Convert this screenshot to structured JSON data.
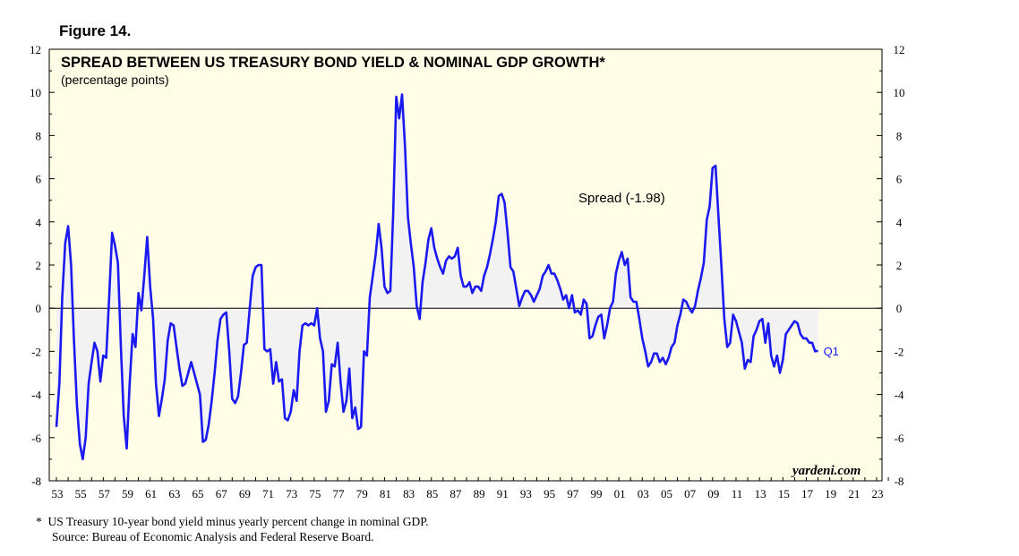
{
  "figure_label": "Figure 14.",
  "footnotes": {
    "line1": "*  US Treasury 10-year bond yield minus yearly percent change in nominal GDP.",
    "line2": "Source: Bureau of Economic Analysis and Federal Reserve Board."
  },
  "colors": {
    "background": "#fffde6",
    "line": "#1a1af0",
    "shade": "#f2f2f2"
  },
  "chart_data": {
    "type": "line",
    "title": "SPREAD BETWEEN US TREASURY BOND YIELD & NOMINAL GDP GROWTH*",
    "subtitle": "(percentage points)",
    "ylim": [
      -8,
      12
    ],
    "xlim": [
      1953,
      2024
    ],
    "y_ticks": [
      -8,
      -6,
      -4,
      -2,
      0,
      2,
      4,
      6,
      8,
      10,
      12
    ],
    "x_tick_labels": [
      "53",
      "55",
      "57",
      "59",
      "61",
      "63",
      "65",
      "67",
      "69",
      "71",
      "73",
      "75",
      "77",
      "79",
      "81",
      "83",
      "85",
      "87",
      "89",
      "91",
      "93",
      "95",
      "97",
      "99",
      "01",
      "03",
      "05",
      "07",
      "09",
      "11",
      "13",
      "15",
      "17",
      "19",
      "21",
      "23"
    ],
    "x_tick_years": [
      1953,
      1955,
      1957,
      1959,
      1961,
      1963,
      1965,
      1967,
      1969,
      1971,
      1973,
      1975,
      1977,
      1979,
      1981,
      1983,
      1985,
      1987,
      1989,
      1991,
      1993,
      1995,
      1997,
      1999,
      2001,
      2003,
      2005,
      2007,
      2009,
      2011,
      2013,
      2015,
      2017,
      2019,
      2021,
      2023
    ],
    "annotation": "Spread (-1.98)",
    "end_label": "Q1",
    "watermark": "yardeni.com",
    "zero_line": true,
    "shaded_to_zero": true,
    "series": [
      {
        "x": [
          1953.0,
          1953.25,
          1953.5,
          1953.75,
          1954.0,
          1954.25,
          1954.5,
          1954.75,
          1955.0,
          1955.25,
          1955.5,
          1955.75,
          1956.0,
          1956.25,
          1956.5,
          1956.75,
          1957.0,
          1957.25,
          1957.5,
          1957.75,
          1958.0,
          1958.25,
          1958.5,
          1958.75,
          1959.0,
          1959.25,
          1959.5,
          1959.75,
          1960.0,
          1960.25,
          1960.5,
          1960.75,
          1961.0,
          1961.25,
          1961.5,
          1961.75,
          1962.0,
          1962.25,
          1962.5,
          1962.75,
          1963.0,
          1963.25,
          1963.5,
          1963.75,
          1964.0,
          1964.25,
          1964.5,
          1964.75,
          1965.0,
          1965.25,
          1965.5,
          1965.75,
          1966.0,
          1966.25,
          1966.5,
          1966.75,
          1967.0,
          1967.25,
          1967.5,
          1967.75,
          1968.0,
          1968.25,
          1968.5,
          1968.75,
          1969.0,
          1969.25,
          1969.5,
          1969.75,
          1970.0,
          1970.25,
          1970.5,
          1970.75,
          1971.0,
          1971.25,
          1971.5,
          1971.75,
          1972.0,
          1972.25,
          1972.5,
          1972.75,
          1973.0,
          1973.25,
          1973.5,
          1973.75,
          1974.0,
          1974.25,
          1974.5,
          1974.75,
          1975.0,
          1975.25,
          1975.5,
          1975.75,
          1976.0,
          1976.25,
          1976.5,
          1976.75,
          1977.0,
          1977.25,
          1977.5,
          1977.75,
          1978.0,
          1978.25,
          1978.5,
          1978.75,
          1979.0,
          1979.25,
          1979.5,
          1979.75,
          1980.0,
          1980.25,
          1980.5,
          1980.75,
          1981.0,
          1981.25,
          1981.5,
          1981.75,
          1982.0,
          1982.25,
          1982.5,
          1982.75,
          1983.0,
          1983.25,
          1983.5,
          1983.75,
          1984.0,
          1984.25,
          1984.5,
          1984.75,
          1985.0,
          1985.25,
          1985.5,
          1985.75,
          1986.0,
          1986.25,
          1986.5,
          1986.75,
          1987.0,
          1987.25,
          1987.5,
          1987.75,
          1988.0,
          1988.25,
          1988.5,
          1988.75,
          1989.0,
          1989.25,
          1989.5,
          1989.75,
          1990.0,
          1990.25,
          1990.5,
          1990.75,
          1991.0,
          1991.25,
          1991.5,
          1991.75,
          1992.0,
          1992.25,
          1992.5,
          1992.75,
          1993.0,
          1993.25,
          1993.5,
          1993.75,
          1994.0,
          1994.25,
          1994.5,
          1994.75,
          1995.0,
          1995.25,
          1995.5,
          1995.75,
          1996.0,
          1996.25,
          1996.5,
          1996.75,
          1997.0,
          1997.25,
          1997.5,
          1997.75,
          1998.0,
          1998.25,
          1998.5,
          1998.75,
          1999.0,
          1999.25,
          1999.5,
          1999.75,
          2000.0,
          2000.25,
          2000.5,
          2000.75,
          2001.0,
          2001.25,
          2001.5,
          2001.75,
          2002.0,
          2002.25,
          2002.5,
          2002.75,
          2003.0,
          2003.25,
          2003.5,
          2003.75,
          2004.0,
          2004.25,
          2004.5,
          2004.75,
          2005.0,
          2005.25,
          2005.5,
          2005.75,
          2006.0,
          2006.25,
          2006.5,
          2006.75,
          2007.0,
          2007.25,
          2007.5,
          2007.75,
          2008.0,
          2008.25,
          2008.5,
          2008.75,
          2009.0,
          2009.25,
          2009.5,
          2009.75,
          2010.0,
          2010.25,
          2010.5,
          2010.75,
          2011.0,
          2011.25,
          2011.5,
          2011.75,
          2012.0,
          2012.25,
          2012.5,
          2012.75,
          2013.0,
          2013.25,
          2013.5,
          2013.75,
          2014.0,
          2014.25,
          2014.5,
          2014.75,
          2015.0,
          2015.25,
          2015.5,
          2015.75,
          2016.0,
          2016.25,
          2016.5,
          2016.75,
          2017.0,
          2017.25,
          2017.5,
          2017.75,
          2018.0
        ],
        "values": [
          -5.5,
          -3.5,
          0.5,
          3.0,
          3.8,
          2.0,
          -1.5,
          -4.5,
          -6.3,
          -7.0,
          -6.0,
          -3.5,
          -2.5,
          -1.6,
          -2.0,
          -3.4,
          -2.2,
          -2.3,
          0.5,
          3.5,
          2.9,
          2.1,
          -1.8,
          -5.0,
          -6.5,
          -3.5,
          -1.2,
          -1.8,
          0.7,
          -0.1,
          1.5,
          3.3,
          1.0,
          -0.5,
          -3.5,
          -5.0,
          -4.2,
          -3.3,
          -1.5,
          -0.7,
          -0.8,
          -1.8,
          -2.8,
          -3.6,
          -3.5,
          -3.0,
          -2.5,
          -3.0,
          -3.5,
          -4.0,
          -6.2,
          -6.1,
          -5.4,
          -4.3,
          -3.0,
          -1.5,
          -0.5,
          -0.3,
          -0.2,
          -2.0,
          -4.2,
          -4.4,
          -4.1,
          -3.0,
          -1.7,
          -1.6,
          0.0,
          1.5,
          1.9,
          2.0,
          2.0,
          -1.9,
          -2.0,
          -1.9,
          -3.5,
          -2.5,
          -3.4,
          -3.3,
          -5.1,
          -5.2,
          -4.8,
          -3.8,
          -4.3,
          -2.0,
          -0.8,
          -0.7,
          -0.8,
          -0.7,
          -0.8,
          0.0,
          -1.4,
          -2.0,
          -4.8,
          -4.3,
          -2.6,
          -2.7,
          -1.6,
          -3.4,
          -4.8,
          -4.3,
          -2.8,
          -5.1,
          -4.6,
          -5.6,
          -5.5,
          -2.0,
          -2.2,
          0.5,
          1.5,
          2.5,
          3.9,
          2.8,
          1.0,
          0.7,
          0.8,
          4.5,
          9.8,
          8.8,
          9.9,
          7.5,
          4.2,
          3.0,
          1.9,
          0.1,
          -0.5,
          1.2,
          2.1,
          3.2,
          3.7,
          2.8,
          2.3,
          1.9,
          1.6,
          2.2,
          2.4,
          2.3,
          2.4,
          2.8,
          1.5,
          1.0,
          1.0,
          1.2,
          0.7,
          1.0,
          1.0,
          0.8,
          1.5,
          1.9,
          2.5,
          3.2,
          4.0,
          5.2,
          5.3,
          4.9,
          3.5,
          1.9,
          1.7,
          0.9,
          0.1,
          0.5,
          0.8,
          0.8,
          0.6,
          0.3,
          0.6,
          0.9,
          1.5,
          1.7,
          2.0,
          1.6,
          1.6,
          1.3,
          0.9,
          0.4,
          0.6,
          0.0,
          0.6,
          -0.2,
          -0.1,
          -0.3,
          0.4,
          0.2,
          -1.4,
          -1.3,
          -0.8,
          -0.4,
          -0.3,
          -1.4,
          -0.8,
          0.0,
          0.3,
          1.6,
          2.2,
          2.6,
          2.0,
          2.3,
          0.5,
          0.3,
          0.3,
          -0.5,
          -1.4,
          -2.0,
          -2.7,
          -2.5,
          -2.1,
          -2.1,
          -2.5,
          -2.3,
          -2.6,
          -2.3,
          -1.8,
          -1.6,
          -0.8,
          -0.3,
          0.4,
          0.3,
          0.0,
          -0.2,
          0.1,
          0.8,
          1.4,
          2.1,
          4.1,
          4.7,
          6.5,
          6.6,
          4.3,
          2.0,
          -0.5,
          -1.8,
          -1.6,
          -0.3,
          -0.6,
          -1.1,
          -1.6,
          -2.8,
          -2.4,
          -2.5,
          -1.3,
          -1.0,
          -0.6,
          -0.5,
          -1.6,
          -0.7,
          -2.2,
          -2.7,
          -2.2,
          -3.0,
          -2.4,
          -1.2,
          -1.0,
          -0.8,
          -0.6,
          -0.7,
          -1.2,
          -1.4,
          -1.4,
          -1.6,
          -1.6,
          -2.0,
          -1.98
        ]
      }
    ]
  }
}
